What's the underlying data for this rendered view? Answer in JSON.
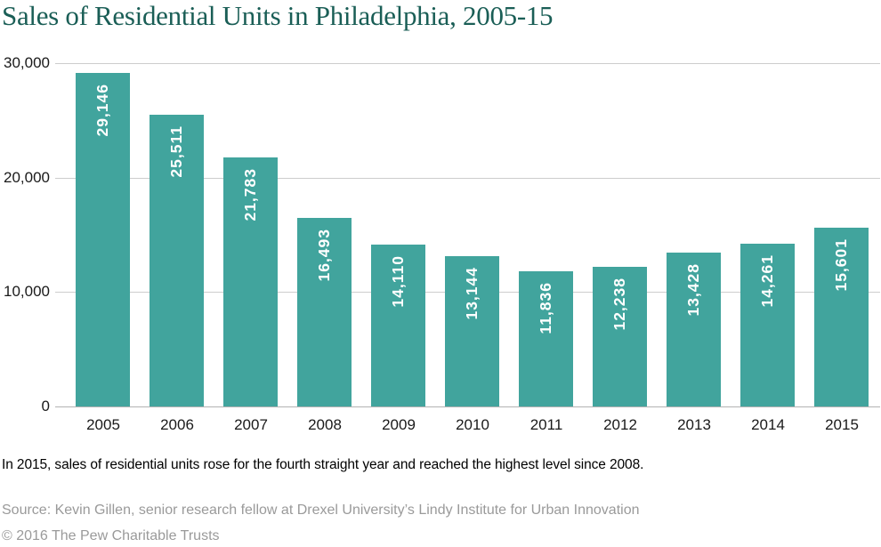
{
  "title": "Sales of Residential Units in Philadelphia, 2005-15",
  "chart_data": {
    "type": "bar",
    "title": "Sales of Residential Units in Philadelphia, 2005-15",
    "categories": [
      "2005",
      "2006",
      "2007",
      "2008",
      "2009",
      "2010",
      "2011",
      "2012",
      "2013",
      "2014",
      "2015"
    ],
    "values": [
      29146,
      25511,
      21783,
      16493,
      14110,
      13144,
      11836,
      12238,
      13428,
      14261,
      15601
    ],
    "value_labels": [
      "29,146",
      "25,511",
      "21,783",
      "16,493",
      "14,110",
      "13,144",
      "11,836",
      "12,238",
      "13,428",
      "14,261",
      "15,601"
    ],
    "xlabel": "",
    "ylabel": "",
    "ylim": [
      0,
      30000
    ],
    "yticks": [
      0,
      10000,
      20000,
      30000
    ],
    "ytick_labels": [
      "0",
      "10,000",
      "20,000",
      "30,000"
    ],
    "grid": true,
    "legend": "none",
    "bar_color": "#41a49d",
    "value_label_color": "#ffffff",
    "value_label_rotation": "vertical-bottom-to-top"
  },
  "notes": {
    "finding": "In 2015, sales of residential units rose for the fourth straight year and reached the highest level since 2008.",
    "source": "Source: Kevin Gillen, senior research fellow at Drexel University’s Lindy Institute for Urban Innovation",
    "copyright": "© 2016 The Pew Charitable Trusts"
  },
  "colors": {
    "title_text": "#1a5e56",
    "bar": "#41a49d",
    "gridline": "#cdcdcd",
    "axis_line": "#b3b3b3",
    "tick_text": "#1a1a1a",
    "finding_text": "#000000",
    "source_text": "#9a9a9a"
  }
}
